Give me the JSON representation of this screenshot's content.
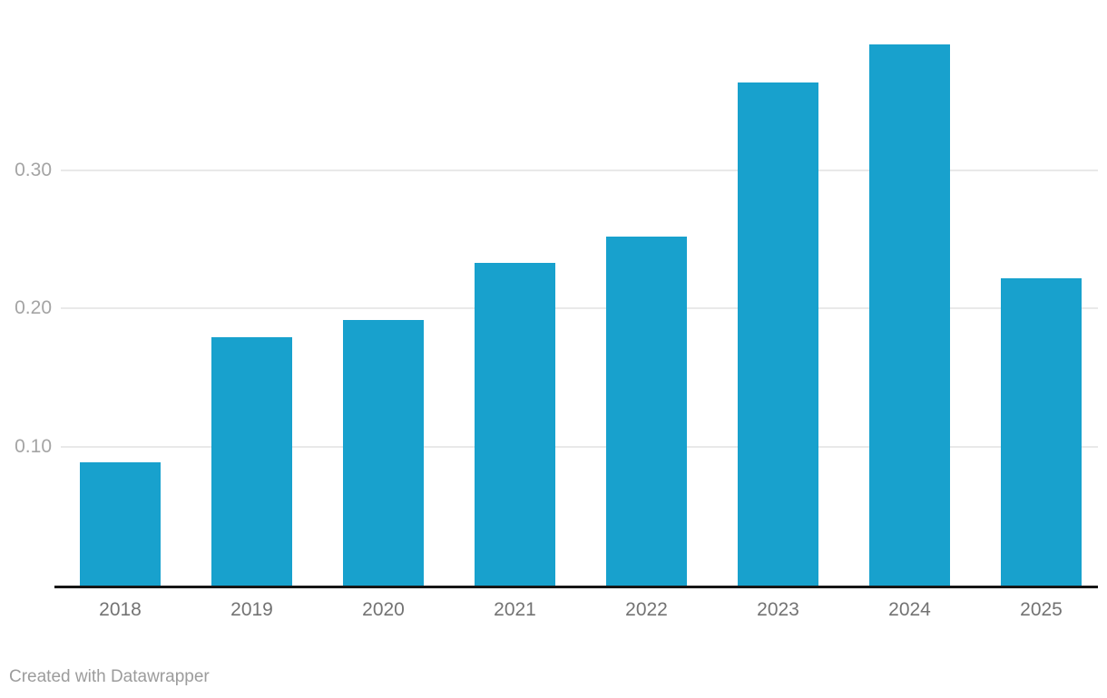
{
  "chart_data": {
    "type": "bar",
    "title": "",
    "categories": [
      "2018",
      "2019",
      "2020",
      "2021",
      "2022",
      "2023",
      "2024",
      "2025"
    ],
    "values": [
      0.089,
      0.179,
      0.192,
      0.233,
      0.252,
      0.363,
      0.391,
      0.222
    ],
    "y_ticks": [
      {
        "value": 0.1,
        "label": "0.10"
      },
      {
        "value": 0.2,
        "label": "0.20"
      },
      {
        "value": 0.3,
        "label": "0.30"
      }
    ],
    "ylim": [
      0,
      0.41
    ],
    "xlabel": "",
    "ylabel": "",
    "grid": true,
    "legend": "none",
    "colors": {
      "bar": "#18a1cd",
      "gridline": "#e9e9e9",
      "axis_line": "#161616",
      "x_label": "#737373",
      "y_label": "#a4a4a4"
    }
  },
  "footer": {
    "credit": "Created with Datawrapper"
  }
}
